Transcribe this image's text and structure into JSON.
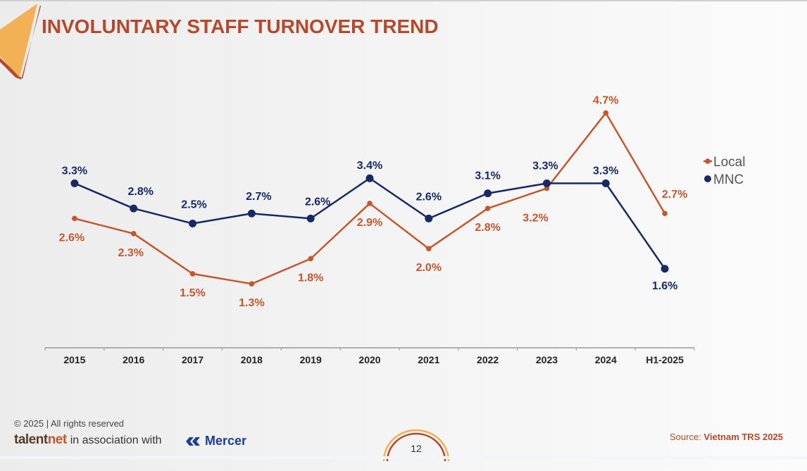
{
  "header": {
    "title": "INVOLUNTARY STAFF TURNOVER TREND"
  },
  "colors": {
    "local": "#c4572d",
    "mnc": "#152a66",
    "title": "#b5492c",
    "accent_orange": "#f2b155",
    "axis": "#999999",
    "tick_label": "#222222",
    "legend_text": "#555555"
  },
  "chart_data": {
    "type": "line",
    "title": "INVOLUNTARY STAFF TURNOVER TREND",
    "xlabel": "",
    "ylabel": "",
    "categories": [
      "2015",
      "2016",
      "2017",
      "2018",
      "2019",
      "2020",
      "2021",
      "2022",
      "2023",
      "2024",
      "H1-2025"
    ],
    "ylim": [
      0,
      5.0
    ],
    "grid": false,
    "legend_position": "right",
    "series": [
      {
        "name": "Local",
        "marker": "diamond-dot",
        "values": [
          2.6,
          2.3,
          1.5,
          1.3,
          1.8,
          2.9,
          2.0,
          2.8,
          3.2,
          4.7,
          2.7
        ],
        "labels": [
          "2.6%",
          "2.3%",
          "1.5%",
          "1.3%",
          "1.8%",
          "2.9%",
          "2.0%",
          "2.8%",
          "3.2%",
          "4.7%",
          "2.7%"
        ],
        "label_side": [
          "below",
          "below",
          "below",
          "below",
          "below",
          "below",
          "below",
          "below",
          "below",
          "above",
          "above"
        ]
      },
      {
        "name": "MNC",
        "marker": "circle",
        "values": [
          3.3,
          2.8,
          2.5,
          2.7,
          2.6,
          3.4,
          2.6,
          3.1,
          3.3,
          3.3,
          1.6
        ],
        "labels": [
          "3.3%",
          "2.8%",
          "2.5%",
          "2.7%",
          "2.6%",
          "3.4%",
          "2.6%",
          "3.1%",
          "3.3%",
          "3.3%",
          "1.6%"
        ],
        "label_side": [
          "above",
          "above",
          "above",
          "above",
          "above",
          "above",
          "above",
          "above",
          "above",
          "above",
          "below"
        ]
      }
    ]
  },
  "footer": {
    "copyright": "© 2025  | All rights reserved",
    "brand_tal": "talent",
    "brand_net": "net",
    "association": "in association with",
    "partner": "Mercer",
    "page_number": "12",
    "source_prefix": "Source: ",
    "source_name": "Vietnam TRS 2025"
  }
}
